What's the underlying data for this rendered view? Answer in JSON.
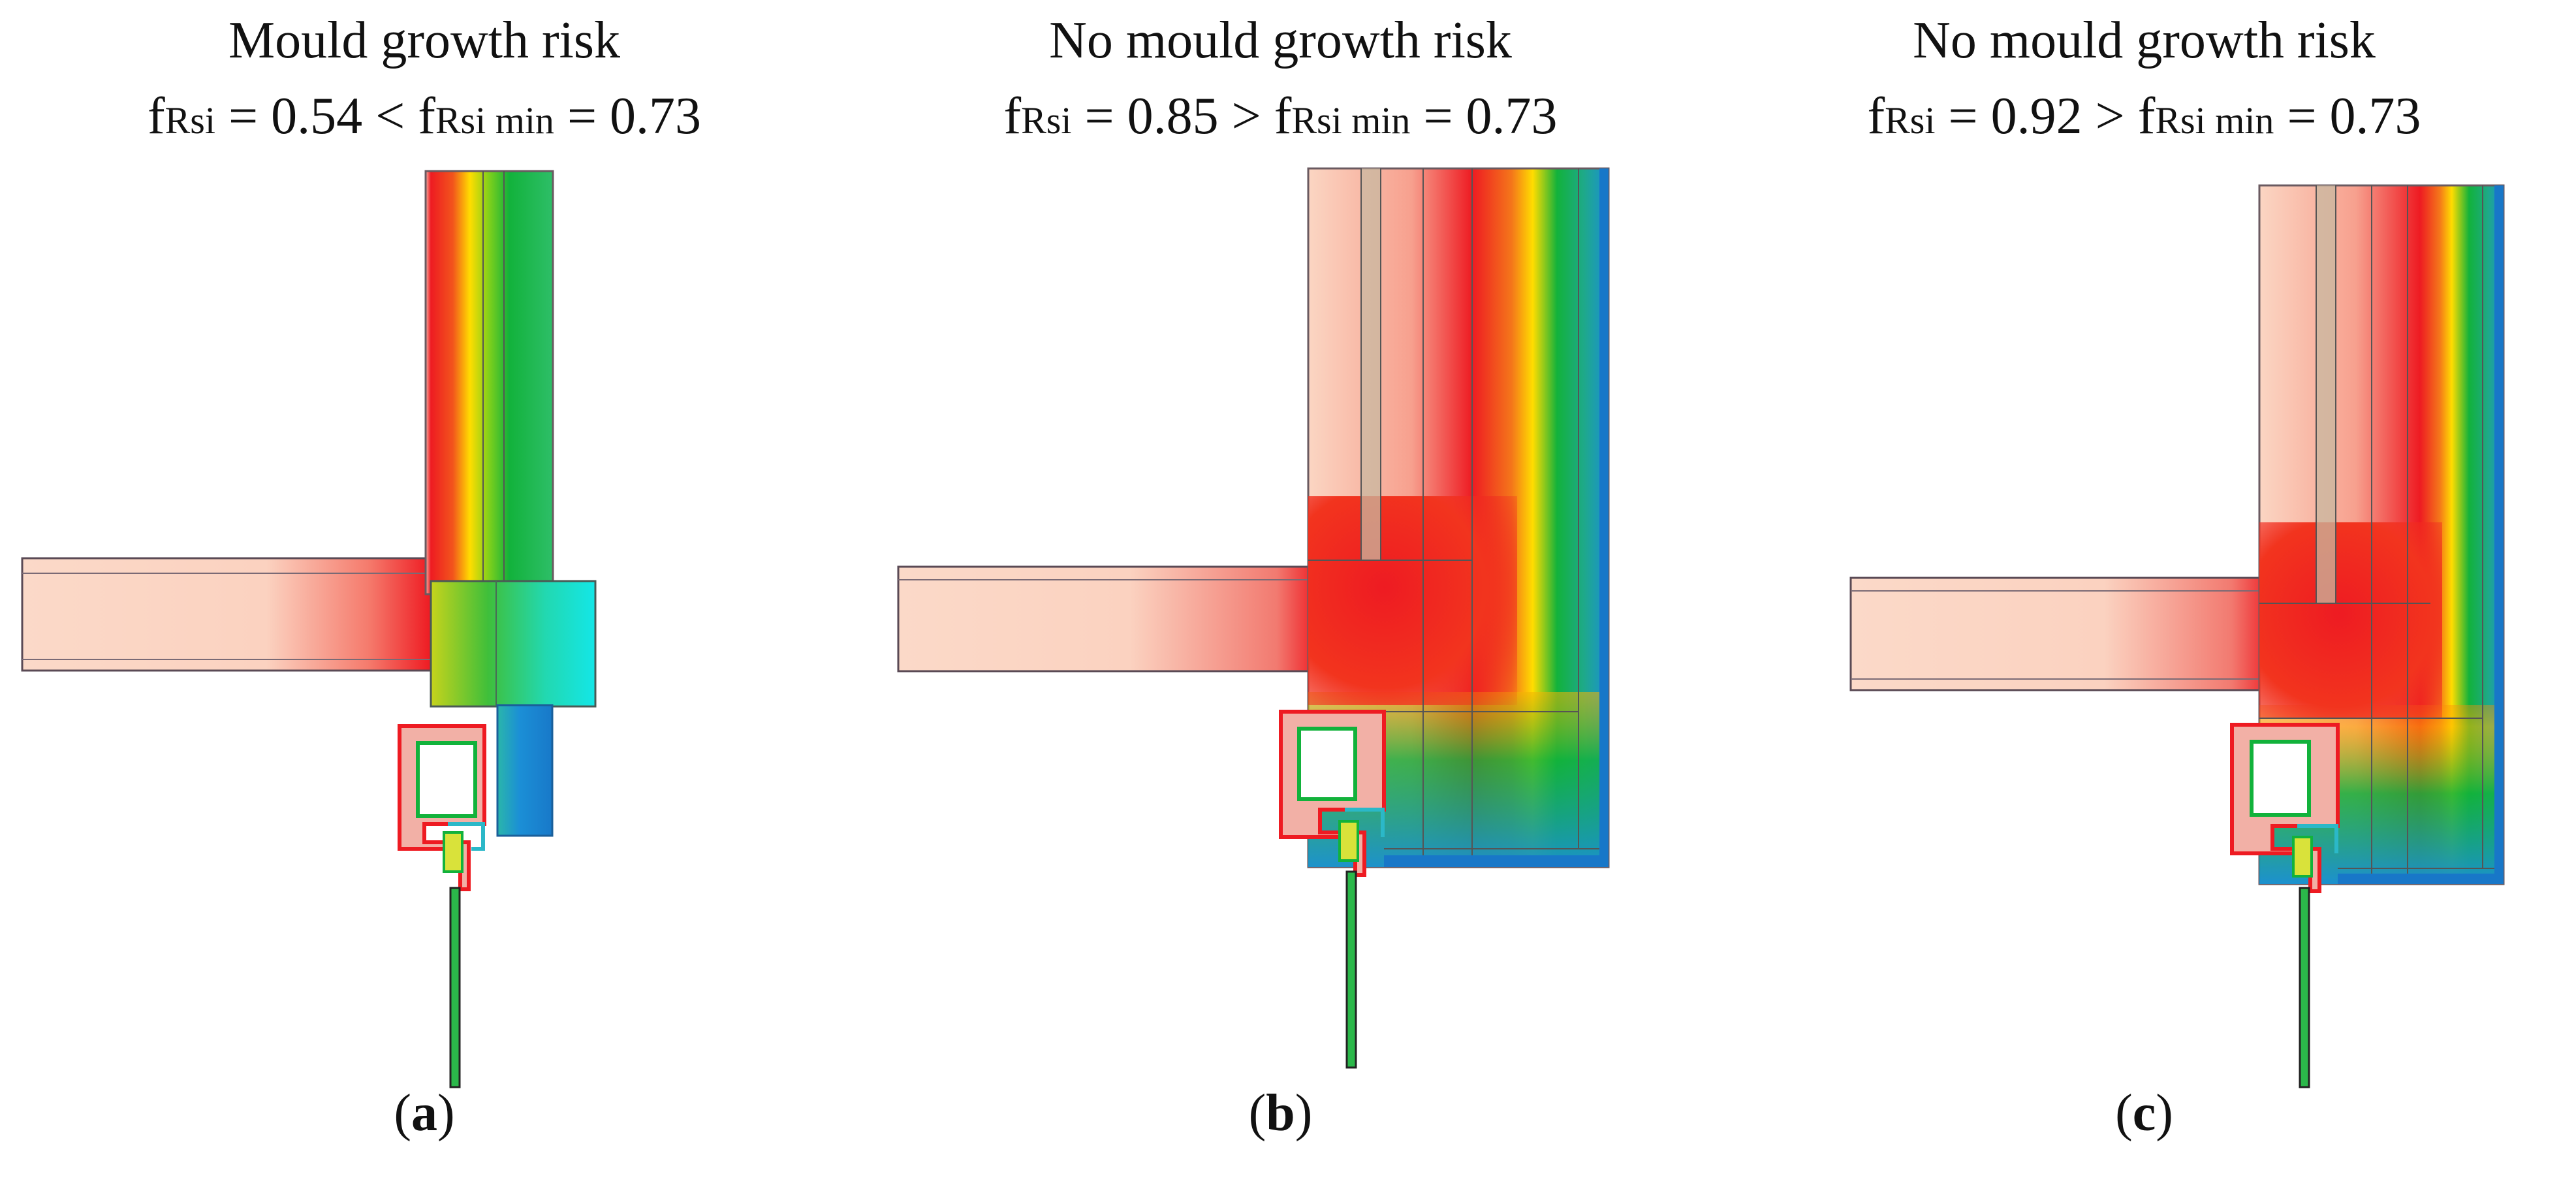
{
  "colors": {
    "interior": "#fbd7c4",
    "warm": "#ee1b22",
    "mid": "#ffdd00",
    "green": "#12b23b",
    "cold": "#1b8fd6",
    "outline": "#5a4a55"
  },
  "panels": [
    {
      "heading": "Mould growth risk",
      "f_prefix": "f",
      "f_sub": "Rsi",
      "f_value_text": " = 0.54 < ",
      "fmin_prefix": "f",
      "fmin_sub": "Rsi min",
      "fmin_value_text": " = 0.73",
      "label_open": "(",
      "label_letter": "a",
      "label_close": ")",
      "fRsi": 0.54,
      "fRsi_min": 0.73
    },
    {
      "heading": "No mould growth risk",
      "f_prefix": "f",
      "f_sub": "Rsi",
      "f_value_text": " = 0.85 > ",
      "fmin_prefix": "f",
      "fmin_sub": "Rsi min",
      "fmin_value_text": " = 0.73",
      "label_open": "(",
      "label_letter": "b",
      "label_close": ")",
      "fRsi": 0.85,
      "fRsi_min": 0.73
    },
    {
      "heading": "No mould growth risk",
      "f_prefix": "f",
      "f_sub": "Rsi",
      "f_value_text": " = 0.92 > ",
      "fmin_prefix": "f",
      "fmin_sub": "Rsi min",
      "fmin_value_text": " = 0.73",
      "label_open": "(",
      "label_letter": "c",
      "label_close": ")",
      "fRsi": 0.92,
      "fRsi_min": 0.73
    }
  ]
}
